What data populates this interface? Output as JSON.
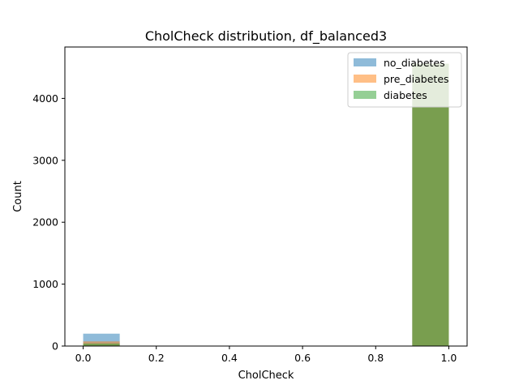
{
  "chart_data": {
    "type": "bar",
    "title": "CholCheck distribution, df_balanced3",
    "xlabel": "CholCheck",
    "ylabel": "Count",
    "xlim": [
      -0.05,
      1.05
    ],
    "ylim": [
      0,
      4830
    ],
    "xticks": [
      "0.0",
      "0.2",
      "0.4",
      "0.6",
      "0.8",
      "1.0"
    ],
    "xtick_values": [
      0,
      0.2,
      0.4,
      0.6,
      0.8,
      1.0
    ],
    "yticks": [
      "0",
      "1000",
      "2000",
      "3000",
      "4000"
    ],
    "ytick_values": [
      0,
      1000,
      2000,
      3000,
      4000
    ],
    "bin_edges": [
      [
        0.0,
        0.1
      ],
      [
        0.9,
        1.0
      ]
    ],
    "series": [
      {
        "name": "no_diabetes",
        "color": "#1f77b4",
        "alpha": 0.5,
        "values": [
          200,
          4560
        ]
      },
      {
        "name": "pre_diabetes",
        "color": "#ff7f0e",
        "alpha": 0.5,
        "values": [
          75,
          4560
        ]
      },
      {
        "name": "diabetes",
        "color": "#2ca02c",
        "alpha": 0.5,
        "values": [
          40,
          4560
        ]
      }
    ],
    "legend_position": "top-right",
    "grid": false
  }
}
